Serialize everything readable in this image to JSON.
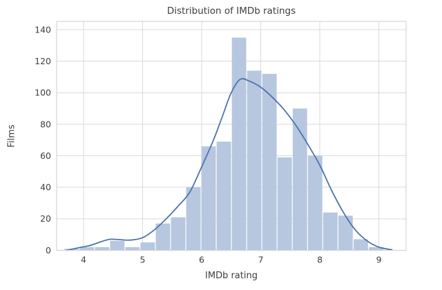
{
  "chart_data": {
    "type": "bar",
    "subtype": "histogram_with_kde",
    "title": "Distribution of IMDb ratings",
    "xlabel": "IMDb rating",
    "ylabel": "Films",
    "bin_start": 3.67,
    "bin_width": 0.2576,
    "counts": [
      1,
      2,
      2,
      6,
      2,
      5,
      17,
      21,
      40,
      66,
      69,
      135,
      114,
      112,
      59,
      90,
      60,
      24,
      22,
      7,
      2
    ],
    "kde": {
      "x": [
        3.72,
        3.9,
        4.1,
        4.3,
        4.45,
        4.6,
        4.8,
        5.0,
        5.2,
        5.4,
        5.6,
        5.8,
        6.0,
        6.2,
        6.35,
        6.5,
        6.65,
        6.8,
        7.0,
        7.2,
        7.4,
        7.6,
        7.8,
        8.0,
        8.2,
        8.4,
        8.6,
        8.8,
        9.0,
        9.22
      ],
      "y": [
        0,
        1.5,
        3,
        5.5,
        7,
        6.8,
        6.5,
        8,
        13,
        20,
        28,
        37,
        53,
        70,
        85,
        100,
        108.5,
        107.5,
        103.5,
        97,
        89,
        79,
        67,
        54,
        38,
        24,
        13,
        6,
        2,
        0.3
      ]
    },
    "xticks": [
      4,
      5,
      6,
      7,
      8,
      9
    ],
    "yticks": [
      0,
      20,
      40,
      60,
      80,
      100,
      120,
      140
    ],
    "xlim": [
      3.545,
      9.46
    ],
    "ylim": [
      0,
      145.3
    ],
    "grid": true,
    "legend": "none",
    "colors": {
      "bar_fill": "#b7c7df",
      "kde_line": "#4c72b0",
      "grid_line": "#dadada",
      "spine": "#cccccc",
      "text": "#3d3d3d",
      "background": "#ffffff"
    }
  }
}
